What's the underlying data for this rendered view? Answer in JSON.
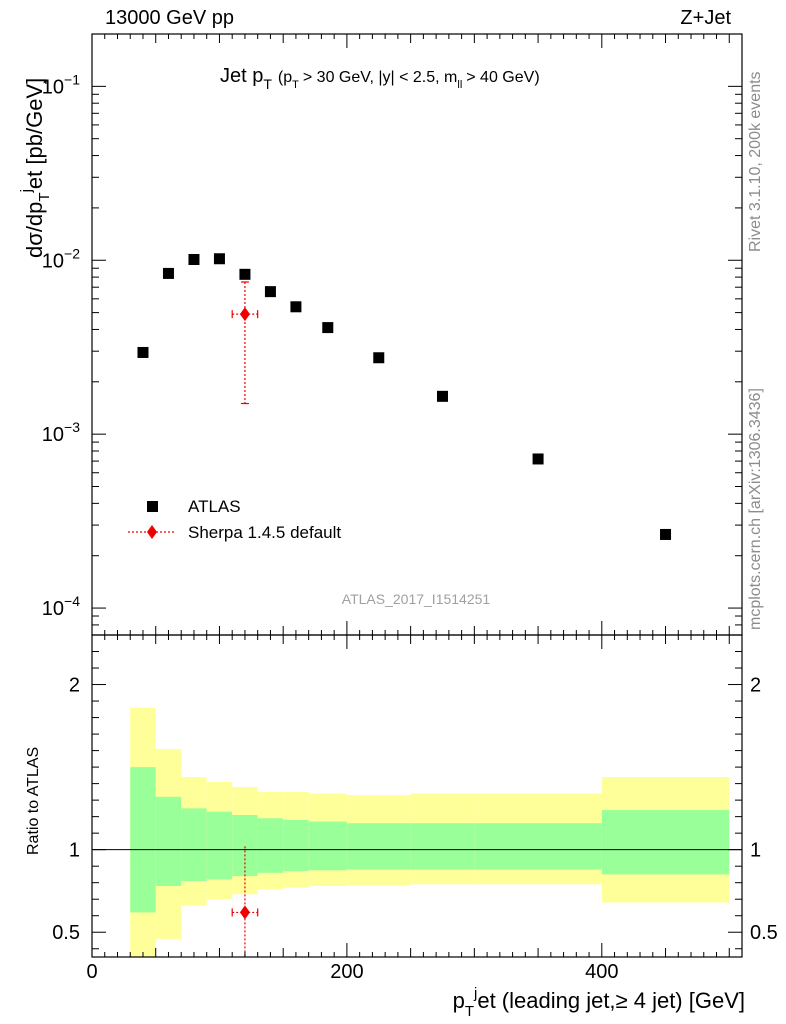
{
  "header": {
    "beam": "13000 GeV pp",
    "process": "Z+Jet",
    "plot_title_main": "Jet p",
    "plot_title_sub": "T",
    "plot_title_cuts": "(p",
    "plot_title_cuts_sub": "T",
    "plot_title_cuts_rest_1": "> 30 GeV, |y| < 2.5, m",
    "plot_title_cuts_sub2": "ll",
    "plot_title_cuts_rest_2": "> 40 GeV)",
    "side_rivet": "Rivet 3.1.10,  200k events",
    "side_mcplots": "mcplots.cern.ch [arXiv:1306.3436]",
    "analysis_id": "ATLAS_2017_I1514251"
  },
  "axes": {
    "ylabel_main": "dσ/dp",
    "ylabel_main_sub": "T",
    "ylabel_main_sup": "j",
    "ylabel_main_rest": "et [pb/GeV]",
    "ylabel_ratio": "Ratio to ATLAS",
    "xlabel_pre": "p",
    "xlabel_sub": "T",
    "xlabel_sup": "j",
    "xlabel_rest": "et (leading jet,≥ 4 jet) [GeV]",
    "main_yticks": [
      {
        "base": "10",
        "exp": "−1",
        "value": 0.1
      },
      {
        "base": "10",
        "exp": "−2",
        "value": 0.01
      },
      {
        "base": "10",
        "exp": "−3",
        "value": 0.001
      },
      {
        "base": "10",
        "exp": "−4",
        "value": 0.0001
      }
    ],
    "ratio_yticks": [
      {
        "label": "2",
        "value": 2
      },
      {
        "label": "1",
        "value": 1
      },
      {
        "label": "0.5",
        "value": 0.5
      }
    ],
    "xticks": [
      {
        "label": "0",
        "value": 0
      },
      {
        "label": "200",
        "value": 200
      },
      {
        "label": "400",
        "value": 400
      }
    ]
  },
  "legend": {
    "atlas": "ATLAS",
    "sherpa": "Sherpa 1.4.5 default"
  },
  "colors": {
    "data": "#000000",
    "mc": "#ee0000",
    "band_inner": "#99ff99",
    "band_outer": "#ffff99"
  },
  "chart_data": {
    "type": "scatter",
    "x_range": [
      0,
      510
    ],
    "y_range_main": [
      7e-05,
      0.2
    ],
    "y_scale_main": "log",
    "y_range_ratio": [
      0.35,
      2.3
    ],
    "legend_position": "lower-left",
    "series": [
      {
        "name": "ATLAS",
        "x": [
          40,
          60,
          80,
          100,
          120,
          140,
          160,
          185,
          225,
          275,
          350,
          450
        ],
        "values": [
          0.00295,
          0.0084,
          0.0101,
          0.0102,
          0.0083,
          0.0066,
          0.0054,
          0.0041,
          0.00275,
          0.00165,
          0.00072,
          0.000265
        ]
      },
      {
        "name": "Sherpa 1.4.5 default",
        "x": [
          120
        ],
        "values": [
          0.0049
        ],
        "x_err": [
          10
        ],
        "y_err_low": [
          0.0034
        ],
        "y_err_high": [
          0.0026
        ]
      }
    ],
    "ratio": {
      "bin_edges": [
        30,
        50,
        70,
        90,
        110,
        130,
        150,
        170,
        200,
        250,
        300,
        400,
        500
      ],
      "inner_low": [
        0.62,
        0.78,
        0.81,
        0.82,
        0.84,
        0.86,
        0.87,
        0.875,
        0.88,
        0.88,
        0.88,
        0.85
      ],
      "inner_high": [
        1.5,
        1.32,
        1.25,
        1.23,
        1.21,
        1.19,
        1.18,
        1.17,
        1.16,
        1.16,
        1.16,
        1.24
      ],
      "outer_low": [
        0.35,
        0.46,
        0.66,
        0.7,
        0.73,
        0.76,
        0.77,
        0.78,
        0.785,
        0.79,
        0.79,
        0.68
      ],
      "outer_high": [
        1.86,
        1.61,
        1.44,
        1.41,
        1.38,
        1.35,
        1.35,
        1.34,
        1.33,
        1.34,
        1.34,
        1.44
      ],
      "mc_points": [
        {
          "x": 120,
          "y": 0.62,
          "x_err": 10,
          "y_err_low": 0.3,
          "y_err_high": 0.4
        }
      ]
    }
  }
}
